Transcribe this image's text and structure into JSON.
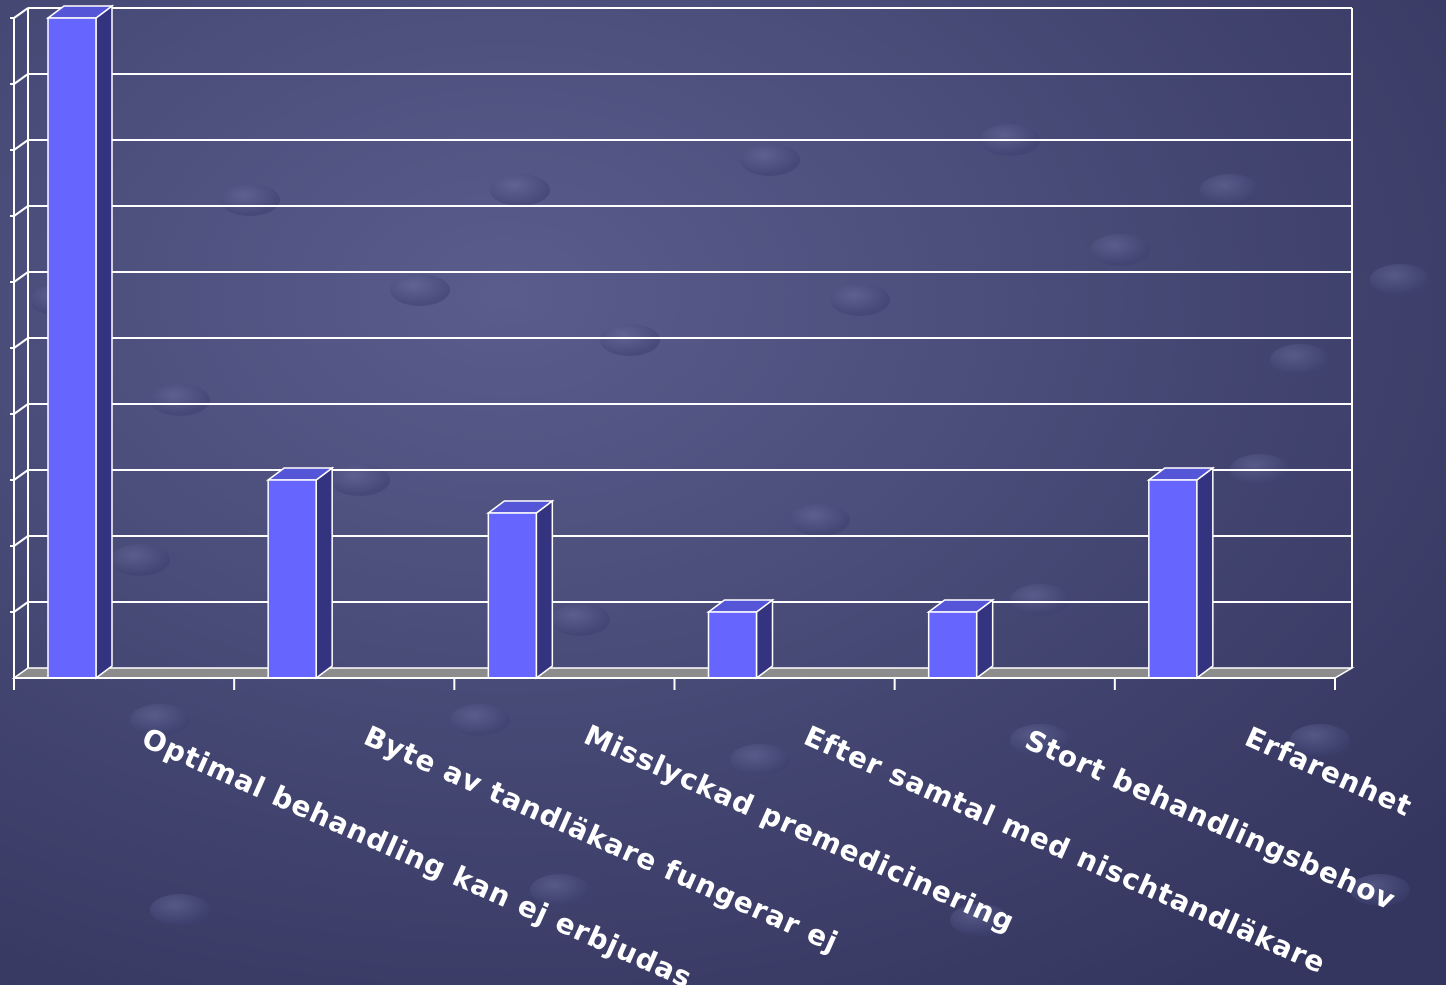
{
  "chart_data": {
    "type": "bar",
    "style": "3d-column",
    "categories": [
      "Optimal behandling kan ej erbjudas",
      "Byte av tandläkare fungerar ej",
      "Misslyckad premedicinering",
      "Efter samtal med nischtandläkare",
      "Stort behandlingsbehov",
      "Erfarenhet"
    ],
    "values": [
      10,
      3,
      2.5,
      1,
      1,
      3
    ],
    "ylim": [
      0,
      10
    ],
    "grid": true,
    "legend": "none",
    "title": "",
    "xlabel": "",
    "ylabel": ""
  },
  "colors": {
    "background": "#3a3c6a",
    "bar_front": "#6666ff",
    "bar_side": "#33337f",
    "bar_top": "#5555d8",
    "gridline": "#ffffff",
    "floor": "#8c8c8c",
    "label": "#ffffff"
  }
}
